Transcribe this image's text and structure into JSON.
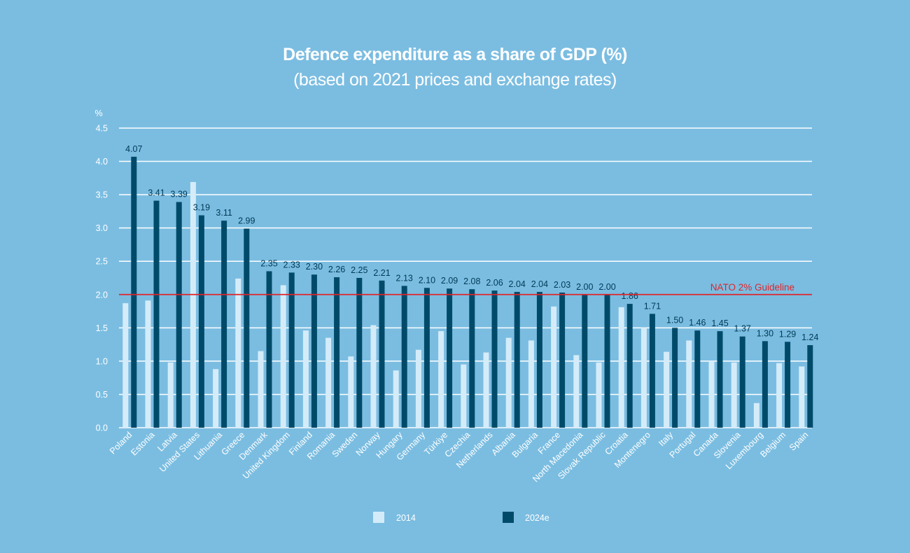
{
  "chart_data": {
    "type": "bar",
    "title": "Defence expenditure as a share of GDP (%)",
    "subtitle": "(based on 2021 prices and exchange rates)",
    "ylabel": "%",
    "ylim": [
      0,
      4.5
    ],
    "yticks": [
      "0.0",
      "0.5",
      "1.0",
      "1.5",
      "2.0",
      "2.5",
      "3.0",
      "3.5",
      "4.0",
      "4.5"
    ],
    "grid": true,
    "categories": [
      "Poland",
      "Estonia",
      "Latvia",
      "United States",
      "Lithuania",
      "Greece",
      "Denmark",
      "United Kingdom",
      "Finland",
      "Romania",
      "Sweden",
      "Norway",
      "Hungary",
      "Germany",
      "Türkiye",
      "Czechia",
      "Netherlands",
      "Albania",
      "Bulgaria",
      "France",
      "North Macedonia",
      "Slovak Republic",
      "Croatia",
      "Montenegro",
      "Italy",
      "Portugal",
      "Canada",
      "Slovenia",
      "Luxembourg",
      "Belgium",
      "Spain"
    ],
    "series": [
      {
        "name": "2014",
        "color": "#d4ecf9",
        "values": [
          1.87,
          1.91,
          0.98,
          3.69,
          0.88,
          2.24,
          1.15,
          2.14,
          1.46,
          1.35,
          1.07,
          1.54,
          0.86,
          1.17,
          1.45,
          0.95,
          1.13,
          1.35,
          1.31,
          1.82,
          1.09,
          0.98,
          1.81,
          1.5,
          1.14,
          1.31,
          1.0,
          0.98,
          0.37,
          0.97,
          0.92
        ]
      },
      {
        "name": "2024e",
        "color": "#004a69",
        "values": [
          4.07,
          3.41,
          3.39,
          3.19,
          3.11,
          2.99,
          2.35,
          2.33,
          2.3,
          2.26,
          2.25,
          2.21,
          2.13,
          2.1,
          2.09,
          2.08,
          2.06,
          2.04,
          2.04,
          2.03,
          2.0,
          2.0,
          1.86,
          1.71,
          1.5,
          1.46,
          1.45,
          1.37,
          1.3,
          1.29,
          1.24
        ],
        "labels": [
          "4.07",
          "3.41",
          "3.39",
          "3.19",
          "3.11",
          "2.99",
          "2.35",
          "2.33",
          "2.30",
          "2.26",
          "2.25",
          "2.21",
          "2.13",
          "2.10",
          "2.09",
          "2.08",
          "2.06",
          "2.04",
          "2.04",
          "2.03",
          "2.00",
          "2.00",
          "1.86",
          "1.71",
          "1.50",
          "1.46",
          "1.45",
          "1.37",
          "1.30",
          "1.29",
          "1.24"
        ]
      }
    ],
    "reference_line": {
      "value": 2.0,
      "label": "NATO 2% Guideline",
      "color": "#e0242b"
    },
    "legend_position": "bottom"
  }
}
